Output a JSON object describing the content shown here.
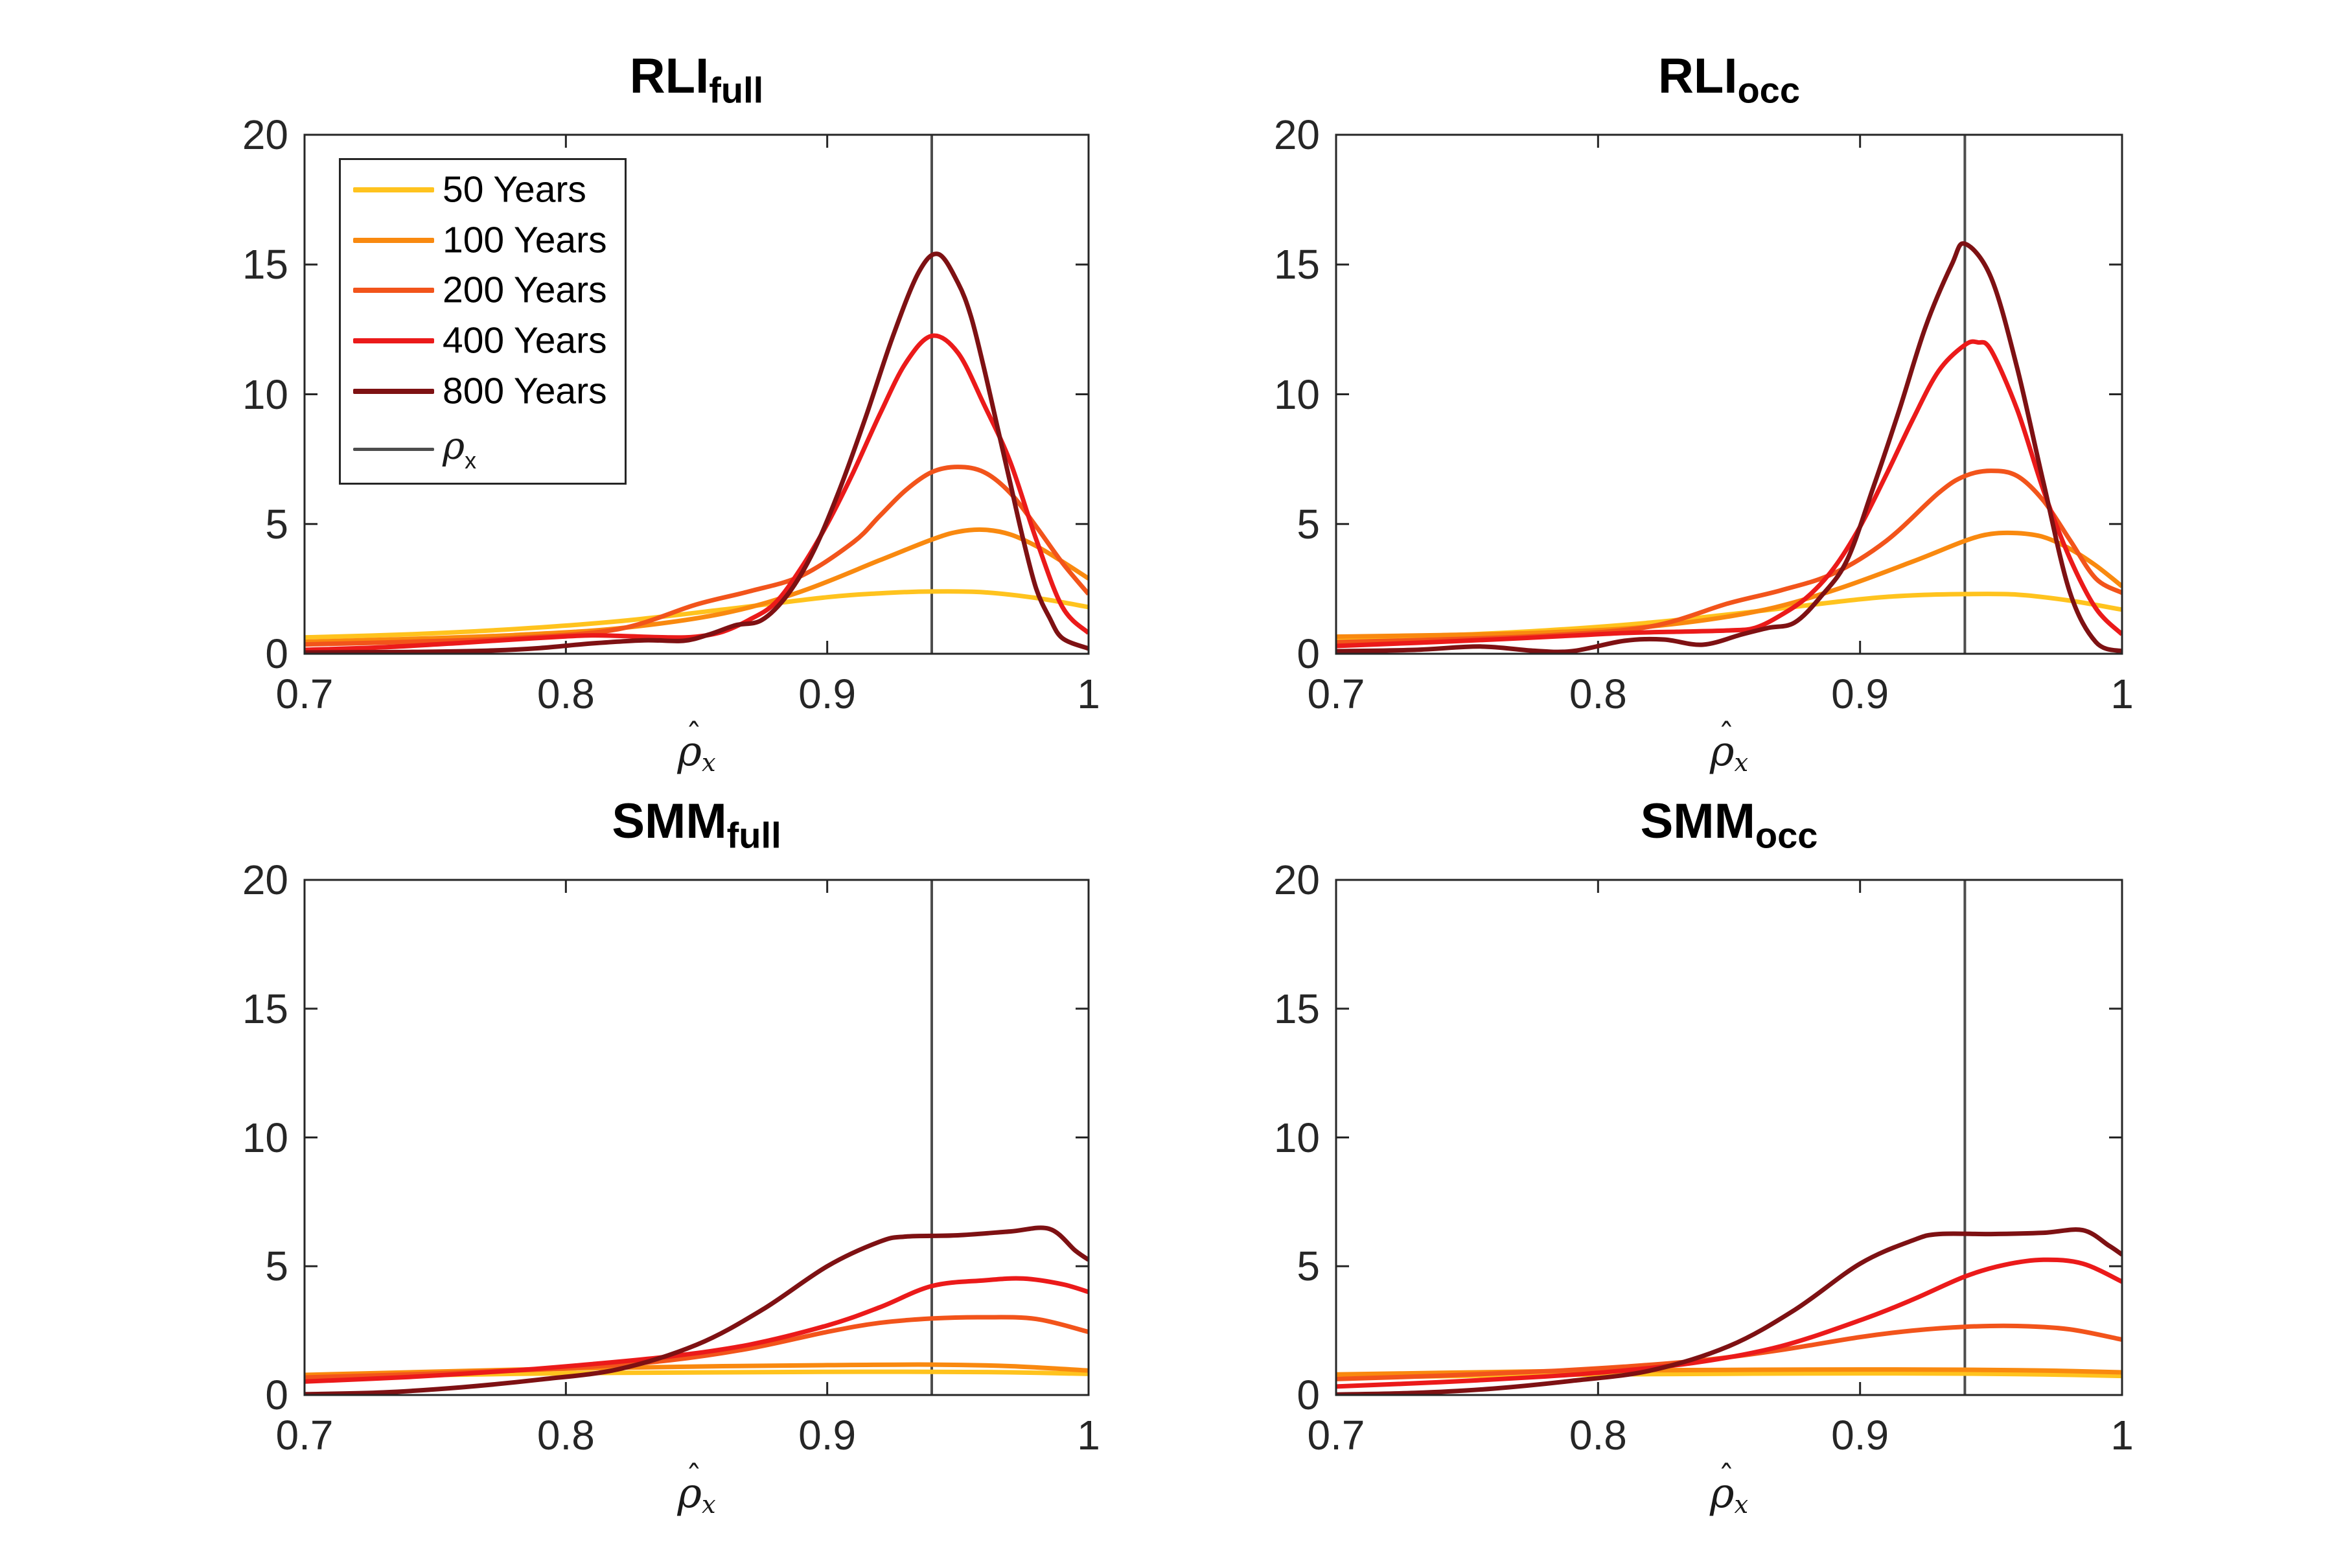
{
  "figure": {
    "background": "#ffffff",
    "axis_color": "#262626",
    "text_color": "#262626"
  },
  "axes": {
    "xlim": [
      0.7,
      1.0
    ],
    "ylim": [
      0,
      20
    ],
    "x_ticks": [
      "0.7",
      "0.8",
      "0.9",
      "1"
    ],
    "x_tick_values": [
      0.7,
      0.8,
      0.9,
      1.0
    ],
    "y_ticks": [
      "0",
      "5",
      "10",
      "15",
      "20"
    ],
    "y_tick_values": [
      0,
      5,
      10,
      15,
      20
    ],
    "xlabel_symbol": "ρ",
    "xlabel_hat": "ˆ",
    "xlabel_sub": "x"
  },
  "legend": {
    "items": [
      "50 Years",
      "100 Years",
      "200 Years",
      "400 Years",
      "800 Years"
    ],
    "rho_symbol": "ρ",
    "rho_sub": "x",
    "rho_color": "#4D4D4D"
  },
  "chart_data": [
    {
      "type": "line",
      "title": "RLI",
      "title_sub": "full",
      "xlabel": "rho_hat_x",
      "vline": 0.94,
      "vline_color": "#4D4D4D",
      "series": [
        {
          "name": "50 Years",
          "color": "#FFC31E",
          "x": [
            0.7,
            0.74,
            0.78,
            0.82,
            0.86,
            0.9,
            0.92,
            0.94,
            0.96,
            0.98,
            1.0
          ],
          "v": [
            0.63,
            0.75,
            0.95,
            1.25,
            1.7,
            2.18,
            2.33,
            2.4,
            2.37,
            2.15,
            1.8
          ]
        },
        {
          "name": "100 Years",
          "color": "#F9890F",
          "x": [
            0.7,
            0.74,
            0.78,
            0.82,
            0.86,
            0.89,
            0.92,
            0.94,
            0.95,
            0.96,
            0.97,
            0.98,
            0.99,
            1.0
          ],
          "v": [
            0.46,
            0.57,
            0.72,
            0.98,
            1.55,
            2.4,
            3.6,
            4.4,
            4.7,
            4.78,
            4.6,
            4.15,
            3.55,
            2.9
          ]
        },
        {
          "name": "200 Years",
          "color": "#F2541B",
          "x": [
            0.7,
            0.74,
            0.78,
            0.82,
            0.85,
            0.87,
            0.89,
            0.91,
            0.92,
            0.93,
            0.94,
            0.95,
            0.96,
            0.97,
            0.98,
            0.99,
            1.0
          ],
          "v": [
            0.36,
            0.46,
            0.6,
            0.95,
            1.9,
            2.4,
            3.0,
            4.3,
            5.3,
            6.3,
            7.0,
            7.2,
            7.0,
            6.2,
            4.9,
            3.5,
            2.3
          ]
        },
        {
          "name": "400 Years",
          "color": "#EB1A1A",
          "x": [
            0.7,
            0.73,
            0.76,
            0.78,
            0.8,
            0.81,
            0.82,
            0.84,
            0.85,
            0.86,
            0.87,
            0.88,
            0.89,
            0.9,
            0.91,
            0.92,
            0.93,
            0.94,
            0.95,
            0.96,
            0.97,
            0.98,
            0.99,
            1.0
          ],
          "v": [
            0.15,
            0.25,
            0.42,
            0.55,
            0.67,
            0.71,
            0.69,
            0.63,
            0.66,
            0.85,
            1.3,
            1.95,
            3.3,
            5.0,
            7.0,
            9.2,
            11.2,
            12.25,
            11.6,
            9.6,
            7.4,
            4.4,
            1.8,
            0.8
          ]
        },
        {
          "name": "800 Years",
          "color": "#7E1113",
          "x": [
            0.7,
            0.74,
            0.77,
            0.79,
            0.81,
            0.83,
            0.845,
            0.855,
            0.865,
            0.875,
            0.885,
            0.895,
            0.905,
            0.915,
            0.925,
            0.935,
            0.9425,
            0.95,
            0.955,
            0.96,
            0.965,
            0.97,
            0.975,
            0.98,
            0.985,
            0.99,
            1.0
          ],
          "v": [
            0.05,
            0.07,
            0.12,
            0.22,
            0.4,
            0.52,
            0.5,
            0.75,
            1.1,
            1.3,
            2.3,
            4.0,
            6.4,
            9.2,
            12.2,
            14.7,
            15.4,
            14.3,
            13.0,
            11.0,
            8.8,
            6.6,
            4.4,
            2.5,
            1.4,
            0.6,
            0.2
          ]
        }
      ]
    },
    {
      "type": "line",
      "title": "RLI",
      "title_sub": "occ",
      "xlabel": "rho_hat_x",
      "vline": 0.94,
      "vline_color": "#4D4D4D",
      "series": [
        {
          "name": "50 Years",
          "color": "#FFC31E",
          "x": [
            0.7,
            0.74,
            0.78,
            0.82,
            0.86,
            0.9,
            0.92,
            0.94,
            0.96,
            0.98,
            1.0
          ],
          "v": [
            0.58,
            0.7,
            0.9,
            1.2,
            1.63,
            2.1,
            2.25,
            2.3,
            2.28,
            2.05,
            1.7
          ]
        },
        {
          "name": "100 Years",
          "color": "#F9890F",
          "x": [
            0.7,
            0.74,
            0.78,
            0.82,
            0.86,
            0.89,
            0.92,
            0.94,
            0.95,
            0.96,
            0.97,
            0.98,
            0.99,
            1.0
          ],
          "v": [
            0.66,
            0.72,
            0.82,
            1.05,
            1.62,
            2.45,
            3.55,
            4.35,
            4.62,
            4.65,
            4.5,
            4.05,
            3.4,
            2.6
          ]
        },
        {
          "name": "200 Years",
          "color": "#F2541B",
          "x": [
            0.7,
            0.74,
            0.78,
            0.82,
            0.85,
            0.87,
            0.89,
            0.91,
            0.93,
            0.94,
            0.95,
            0.96,
            0.97,
            0.98,
            0.99,
            1.0
          ],
          "v": [
            0.45,
            0.55,
            0.7,
            1.05,
            1.95,
            2.45,
            3.1,
            4.35,
            6.2,
            6.85,
            7.05,
            6.85,
            5.9,
            4.4,
            2.9,
            2.35
          ]
        },
        {
          "name": "400 Years",
          "color": "#EB1A1A",
          "x": [
            0.7,
            0.73,
            0.76,
            0.79,
            0.81,
            0.83,
            0.85,
            0.86,
            0.87,
            0.88,
            0.89,
            0.9,
            0.91,
            0.92,
            0.93,
            0.94,
            0.945,
            0.95,
            0.96,
            0.97,
            0.98,
            0.99,
            1.0
          ],
          "v": [
            0.3,
            0.42,
            0.55,
            0.7,
            0.8,
            0.85,
            0.9,
            1.0,
            1.5,
            2.2,
            3.3,
            4.9,
            6.9,
            9.0,
            10.9,
            11.9,
            12.0,
            11.7,
            9.4,
            6.3,
            3.7,
            1.75,
            0.75
          ]
        },
        {
          "name": "800 Years",
          "color": "#7E1113",
          "x": [
            0.7,
            0.73,
            0.755,
            0.775,
            0.79,
            0.81,
            0.825,
            0.84,
            0.855,
            0.865,
            0.875,
            0.885,
            0.895,
            0.905,
            0.915,
            0.925,
            0.935,
            0.94,
            0.95,
            0.96,
            0.97,
            0.98,
            0.99,
            1.0
          ],
          "v": [
            0.1,
            0.15,
            0.28,
            0.12,
            0.1,
            0.5,
            0.55,
            0.35,
            0.75,
            1.0,
            1.2,
            2.2,
            3.6,
            6.4,
            9.4,
            12.6,
            15.0,
            15.8,
            14.5,
            11.0,
            6.6,
            2.4,
            0.45,
            0.1
          ]
        }
      ]
    },
    {
      "type": "line",
      "title": "SMM",
      "title_sub": "full",
      "xlabel": "rho_hat_x",
      "vline": 0.94,
      "vline_color": "#4D4D4D",
      "series": [
        {
          "name": "50 Years",
          "color": "#FFC31E",
          "x": [
            0.7,
            0.74,
            0.78,
            0.82,
            0.86,
            0.9,
            0.94,
            0.97,
            1.0
          ],
          "v": [
            0.7,
            0.76,
            0.82,
            0.86,
            0.88,
            0.9,
            0.9,
            0.88,
            0.82
          ]
        },
        {
          "name": "100 Years",
          "color": "#F9890F",
          "x": [
            0.7,
            0.74,
            0.78,
            0.82,
            0.86,
            0.9,
            0.94,
            0.97,
            1.0
          ],
          "v": [
            0.78,
            0.88,
            0.98,
            1.06,
            1.12,
            1.16,
            1.18,
            1.12,
            0.95
          ]
        },
        {
          "name": "200 Years",
          "color": "#F2541B",
          "x": [
            0.7,
            0.74,
            0.78,
            0.81,
            0.84,
            0.87,
            0.9,
            0.92,
            0.94,
            0.96,
            0.98,
            1.0
          ],
          "v": [
            0.68,
            0.8,
            0.95,
            1.1,
            1.35,
            1.8,
            2.45,
            2.8,
            2.97,
            3.02,
            2.95,
            2.45
          ]
        },
        {
          "name": "400 Years",
          "color": "#EB1A1A",
          "x": [
            0.7,
            0.74,
            0.78,
            0.81,
            0.84,
            0.87,
            0.9,
            0.92,
            0.94,
            0.96,
            0.975,
            0.99,
            1.0
          ],
          "v": [
            0.52,
            0.7,
            0.95,
            1.2,
            1.5,
            1.95,
            2.7,
            3.4,
            4.23,
            4.45,
            4.52,
            4.3,
            4.0
          ]
        },
        {
          "name": "800 Years",
          "color": "#7E1113",
          "x": [
            0.7,
            0.73,
            0.76,
            0.79,
            0.82,
            0.85,
            0.875,
            0.9,
            0.92,
            0.93,
            0.95,
            0.97,
            0.985,
            0.995,
            1.0
          ],
          "v": [
            0.03,
            0.1,
            0.3,
            0.6,
            1.0,
            1.95,
            3.3,
            5.0,
            5.95,
            6.15,
            6.2,
            6.35,
            6.45,
            5.6,
            5.25
          ]
        }
      ]
    },
    {
      "type": "line",
      "title": "SMM",
      "title_sub": "occ",
      "xlabel": "rho_hat_x",
      "vline": 0.94,
      "vline_color": "#4D4D4D",
      "series": [
        {
          "name": "50 Years",
          "color": "#FFC31E",
          "x": [
            0.7,
            0.74,
            0.78,
            0.82,
            0.86,
            0.9,
            0.94,
            0.97,
            1.0
          ],
          "v": [
            0.68,
            0.73,
            0.78,
            0.81,
            0.83,
            0.84,
            0.83,
            0.8,
            0.74
          ]
        },
        {
          "name": "100 Years",
          "color": "#F9890F",
          "x": [
            0.7,
            0.74,
            0.78,
            0.82,
            0.86,
            0.9,
            0.94,
            0.97,
            1.0
          ],
          "v": [
            0.8,
            0.86,
            0.92,
            0.96,
            0.98,
            0.99,
            0.98,
            0.95,
            0.88
          ]
        },
        {
          "name": "200 Years",
          "color": "#F2541B",
          "x": [
            0.7,
            0.74,
            0.78,
            0.81,
            0.84,
            0.87,
            0.9,
            0.92,
            0.94,
            0.96,
            0.98,
            1.0
          ],
          "v": [
            0.62,
            0.75,
            0.92,
            1.1,
            1.35,
            1.75,
            2.25,
            2.5,
            2.65,
            2.68,
            2.55,
            2.15
          ]
        },
        {
          "name": "400 Years",
          "color": "#EB1A1A",
          "x": [
            0.7,
            0.74,
            0.78,
            0.81,
            0.84,
            0.87,
            0.9,
            0.92,
            0.94,
            0.955,
            0.97,
            0.985,
            1.0
          ],
          "v": [
            0.33,
            0.5,
            0.72,
            0.95,
            1.3,
            1.9,
            2.9,
            3.7,
            4.6,
            5.05,
            5.25,
            5.1,
            4.4
          ]
        },
        {
          "name": "800 Years",
          "color": "#7E1113",
          "x": [
            0.7,
            0.73,
            0.76,
            0.79,
            0.82,
            0.85,
            0.875,
            0.9,
            0.92,
            0.93,
            0.95,
            0.97,
            0.985,
            0.995,
            1.0
          ],
          "v": [
            0.02,
            0.08,
            0.25,
            0.55,
            0.95,
            1.9,
            3.3,
            5.1,
            6.0,
            6.25,
            6.25,
            6.3,
            6.4,
            5.8,
            5.45
          ]
        }
      ]
    }
  ]
}
